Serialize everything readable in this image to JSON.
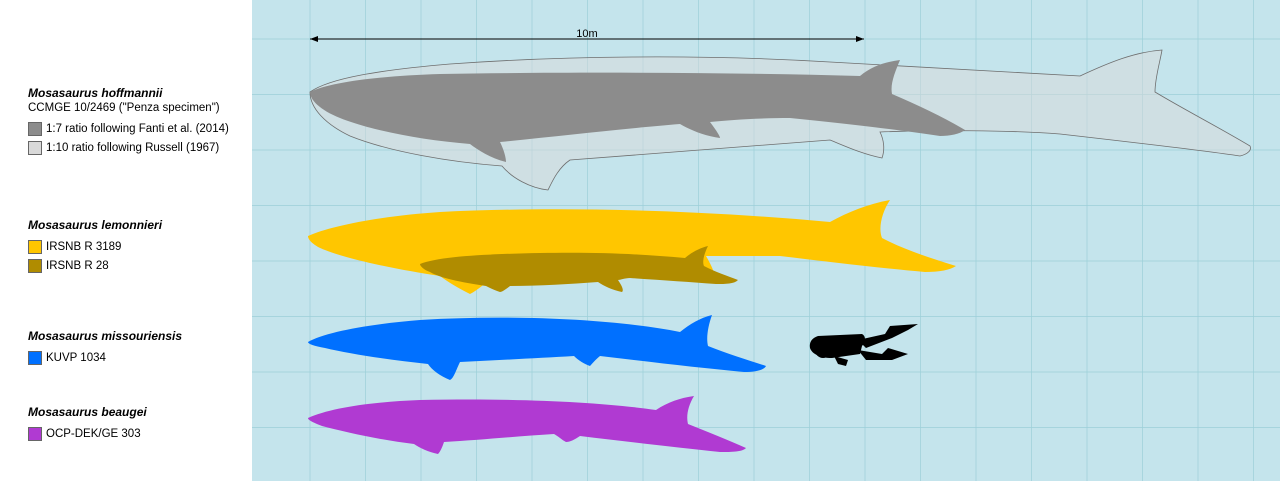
{
  "scale": {
    "label": "10m"
  },
  "colors": {
    "background": "#c4e4ec",
    "grid": "#9ccfd9",
    "hoffmannii_fanti": "#8c8c8c",
    "hoffmannii_russell": "#d9d9d9",
    "lemonnieri_3189": "#ffc600",
    "lemonnieri_28": "#b08c00",
    "missouriensis": "#0070ff",
    "beaugei": "#b03ad2",
    "diver": "#000000"
  },
  "legend": {
    "hoffmannii": {
      "species": "Mosasaurus hoffmannii",
      "specimen": "CCMGE 10/2469 (\"Penza specimen\")",
      "entries": [
        {
          "label": "1:7 ratio following Fanti et al. (2014)",
          "color": "#8c8c8c"
        },
        {
          "label": "1:10 ratio following Russell (1967)",
          "color": "#d9d9d9"
        }
      ]
    },
    "lemonnieri": {
      "species": "Mosasaurus lemonnieri",
      "entries": [
        {
          "label": "IRSNB R 3189",
          "color": "#ffc600"
        },
        {
          "label": "IRSNB R 28",
          "color": "#b08c00"
        }
      ]
    },
    "missouriensis": {
      "species": "Mosasaurus missouriensis",
      "entries": [
        {
          "label": "KUVP 1034",
          "color": "#0070ff"
        }
      ]
    },
    "beaugei": {
      "species": "Mosasaurus beaugei",
      "entries": [
        {
          "label": "OCP-DEK/GE 303",
          "color": "#b03ad2"
        }
      ]
    }
  }
}
